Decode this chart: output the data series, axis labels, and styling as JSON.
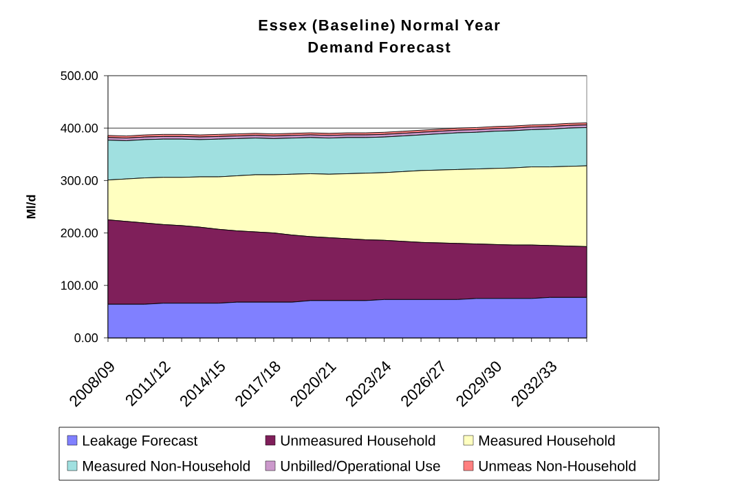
{
  "chart_data": {
    "type": "area",
    "stacked": true,
    "title": "Essex (Baseline) Normal Year Demand Forecast",
    "ylabel": "Ml/d",
    "categories": [
      "2008/09",
      null,
      null,
      "2011/12",
      null,
      null,
      "2014/15",
      null,
      null,
      "2017/18",
      null,
      null,
      "2020/21",
      null,
      null,
      "2023/24",
      null,
      null,
      "2026/27",
      null,
      null,
      "2029/30",
      null,
      null,
      "2032/33",
      null,
      null
    ],
    "series": [
      {
        "name": "Leakage Forecast",
        "color": "#8080ff",
        "values": [
          64,
          64,
          64,
          66,
          66,
          66,
          66,
          68,
          68,
          68,
          68,
          71,
          71,
          71,
          71,
          73,
          73,
          73,
          73,
          73,
          75,
          75,
          75,
          75,
          77,
          77,
          77
        ]
      },
      {
        "name": "Unmeasured Household",
        "color": "#7f1f5a",
        "values": [
          161,
          158,
          155,
          150,
          148,
          145,
          141,
          136,
          134,
          132,
          128,
          122,
          120,
          118,
          116,
          113,
          111,
          109,
          108,
          107,
          104,
          103,
          102,
          102,
          99,
          98,
          97
        ]
      },
      {
        "name": "Measured Household",
        "color": "#ffffc0",
        "values": [
          76,
          81,
          86,
          90,
          92,
          96,
          100,
          105,
          109,
          111,
          116,
          120,
          121,
          124,
          127,
          129,
          133,
          137,
          139,
          141,
          143,
          145,
          147,
          149,
          150,
          152,
          154
        ]
      },
      {
        "name": "Measured Non-Household",
        "color": "#a0e0e0",
        "values": [
          76,
          73,
          73,
          73,
          73,
          71,
          72,
          71,
          70,
          69,
          69,
          69,
          69,
          69,
          68,
          68,
          68,
          68,
          69,
          70,
          70,
          71,
          71,
          71,
          72,
          73,
          73
        ]
      },
      {
        "name": "Unbilled/Operational Use",
        "color": "#cc99cc",
        "values": [
          5,
          5,
          5,
          5,
          5,
          5,
          5,
          5,
          5,
          5,
          5,
          5,
          5,
          5,
          5,
          5,
          5,
          5,
          5,
          5,
          5,
          5,
          5,
          5,
          5,
          5,
          5
        ]
      },
      {
        "name": "Unmeas Non-Household",
        "color": "#ff8080",
        "values": [
          4,
          4,
          4,
          4,
          4,
          4,
          4,
          4,
          4,
          4,
          4,
          4,
          4,
          4,
          4,
          4,
          4,
          4,
          4,
          4,
          4,
          4,
          4,
          4,
          4,
          4,
          4
        ]
      }
    ],
    "ylim": [
      0,
      500
    ],
    "yticks": [
      {
        "value": 0,
        "label": "0.00"
      },
      {
        "value": 100,
        "label": "100.00"
      },
      {
        "value": 200,
        "label": "200.00"
      },
      {
        "value": 300,
        "label": "300.00"
      },
      {
        "value": 400,
        "label": "400.00"
      },
      {
        "value": 500,
        "label": "500.00"
      }
    ],
    "grid": "y",
    "legend": "bottom"
  }
}
